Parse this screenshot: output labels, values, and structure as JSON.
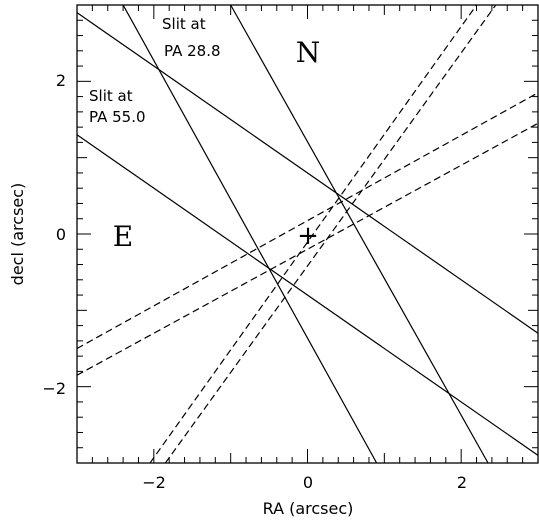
{
  "chart_data": {
    "type": "line",
    "title": "",
    "xlabel": "RA (arcsec)",
    "ylabel": "decl (arcsec)",
    "xlim": [
      -3,
      3
    ],
    "ylim": [
      -3,
      3
    ],
    "xticks": [
      -2,
      0,
      2
    ],
    "yticks": [
      -2,
      0,
      2
    ],
    "xticklabels": [
      "−2",
      "0",
      "2"
    ],
    "yticklabels": [
      "−2",
      "0",
      "2"
    ],
    "grid": false,
    "series": [
      {
        "style": "solid",
        "points": [
          [
            -2.4,
            3.0
          ],
          [
            0.9,
            -3.0
          ]
        ]
      },
      {
        "style": "solid",
        "points": [
          [
            -1.0,
            3.0
          ],
          [
            2.35,
            -3.0
          ]
        ]
      },
      {
        "style": "solid",
        "points": [
          [
            -3.0,
            2.9
          ],
          [
            3.0,
            -1.3
          ]
        ]
      },
      {
        "style": "solid",
        "points": [
          [
            -3.0,
            1.3
          ],
          [
            3.0,
            -2.9
          ]
        ]
      },
      {
        "style": "dashed",
        "points": [
          [
            -2.05,
            -3.0
          ],
          [
            2.2,
            3.0
          ]
        ]
      },
      {
        "style": "dashed",
        "points": [
          [
            -1.85,
            -3.0
          ],
          [
            2.45,
            3.0
          ]
        ]
      },
      {
        "style": "dashed",
        "points": [
          [
            -3.0,
            -1.5
          ],
          [
            3.0,
            1.85
          ]
        ]
      },
      {
        "style": "dashed",
        "points": [
          [
            -3.0,
            -1.85
          ],
          [
            3.0,
            1.45
          ]
        ]
      }
    ],
    "center_marker": {
      "symbol": "+",
      "x": 0,
      "y": 0
    },
    "annotations": [
      {
        "text": "N",
        "x": 0.0,
        "y": 2.35
      },
      {
        "text": "E",
        "x": -2.45,
        "y": 0.0
      }
    ],
    "slit_labels": [
      {
        "line1": "Slit at",
        "line2": "PA 28.8"
      },
      {
        "line1": "Slit at",
        "line2": "PA 55.0"
      }
    ]
  }
}
